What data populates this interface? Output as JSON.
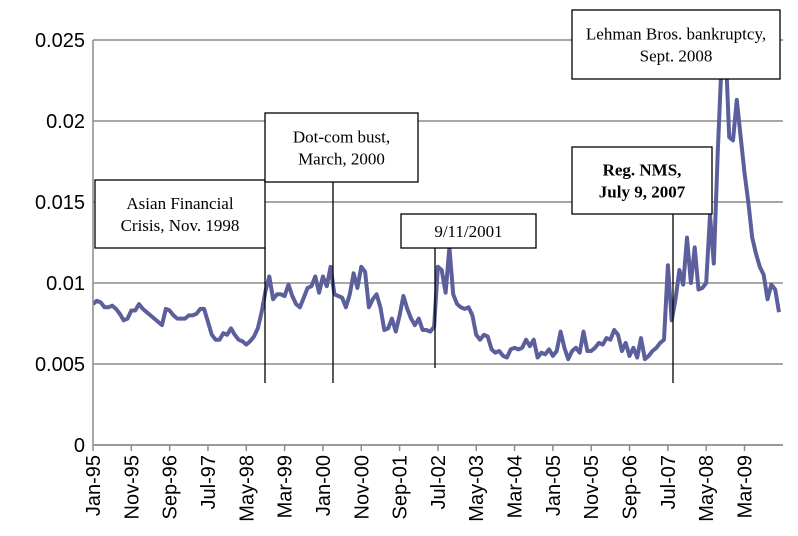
{
  "chart_data": {
    "type": "line",
    "categories": [
      "Jan-95",
      null,
      null,
      null,
      null,
      null,
      null,
      null,
      null,
      null,
      "Nov-95",
      null,
      null,
      null,
      null,
      null,
      null,
      null,
      null,
      null,
      "Sep-96",
      null,
      null,
      null,
      null,
      null,
      null,
      null,
      null,
      null,
      "Jul-97",
      null,
      null,
      null,
      null,
      null,
      null,
      null,
      null,
      null,
      "May-98",
      null,
      null,
      null,
      null,
      null,
      null,
      null,
      null,
      null,
      "Mar-99",
      null,
      null,
      null,
      null,
      null,
      null,
      null,
      null,
      null,
      "Jan-00",
      null,
      null,
      null,
      null,
      null,
      null,
      null,
      null,
      null,
      "Nov-00",
      null,
      null,
      null,
      null,
      null,
      null,
      null,
      null,
      null,
      "Sep-01",
      null,
      null,
      null,
      null,
      null,
      null,
      null,
      null,
      null,
      "Jul-02",
      null,
      null,
      null,
      null,
      null,
      null,
      null,
      null,
      null,
      "May-03",
      null,
      null,
      null,
      null,
      null,
      null,
      null,
      null,
      null,
      "Mar-04",
      null,
      null,
      null,
      null,
      null,
      null,
      null,
      null,
      null,
      "Jan-05",
      null,
      null,
      null,
      null,
      null,
      null,
      null,
      null,
      null,
      "Nov-05",
      null,
      null,
      null,
      null,
      null,
      null,
      null,
      null,
      null,
      "Sep-06",
      null,
      null,
      null,
      null,
      null,
      null,
      null,
      null,
      null,
      "Jul-07",
      null,
      null,
      null,
      null,
      null,
      null,
      null,
      null,
      null,
      "May-08",
      null,
      null,
      null,
      null,
      null,
      null,
      null,
      null,
      null,
      "Mar-09",
      null,
      null,
      null,
      null,
      null,
      null,
      null,
      null,
      null
    ],
    "series": [
      {
        "color": "#5b5f9c",
        "values": [
          0.0087,
          0.0089,
          0.0088,
          0.0085,
          0.0085,
          0.0086,
          0.0084,
          0.0081,
          0.0077,
          0.0078,
          0.0083,
          0.0083,
          0.0087,
          0.0084,
          0.0082,
          0.008,
          0.0078,
          0.0076,
          0.0074,
          0.0084,
          0.0083,
          0.008,
          0.0078,
          0.0078,
          0.0078,
          0.008,
          0.008,
          0.0081,
          0.0084,
          0.0084,
          0.0076,
          0.0068,
          0.0065,
          0.0065,
          0.0069,
          0.0068,
          0.0072,
          0.0068,
          0.0065,
          0.0064,
          0.0062,
          0.0064,
          0.0067,
          0.0072,
          0.0082,
          0.0095,
          0.0104,
          0.009,
          0.0093,
          0.0093,
          0.0092,
          0.0099,
          0.0092,
          0.0087,
          0.0085,
          0.0091,
          0.0097,
          0.0098,
          0.0104,
          0.0094,
          0.0104,
          0.0098,
          0.011,
          0.0093,
          0.0092,
          0.0091,
          0.0085,
          0.0093,
          0.0106,
          0.0097,
          0.011,
          0.0107,
          0.0085,
          0.009,
          0.0093,
          0.0085,
          0.0071,
          0.0072,
          0.0078,
          0.007,
          0.008,
          0.0092,
          0.0084,
          0.0078,
          0.0074,
          0.0078,
          0.0071,
          0.0071,
          0.007,
          0.0073,
          0.011,
          0.0108,
          0.0094,
          0.0122,
          0.0093,
          0.0087,
          0.0085,
          0.0084,
          0.0085,
          0.008,
          0.0068,
          0.0065,
          0.0068,
          0.0067,
          0.0059,
          0.0057,
          0.0058,
          0.0055,
          0.0054,
          0.0059,
          0.006,
          0.0059,
          0.006,
          0.0065,
          0.0061,
          0.0065,
          0.0054,
          0.0057,
          0.0056,
          0.0059,
          0.0055,
          0.0058,
          0.007,
          0.006,
          0.0053,
          0.0058,
          0.006,
          0.0057,
          0.007,
          0.0058,
          0.0058,
          0.006,
          0.0063,
          0.0062,
          0.0066,
          0.0065,
          0.0071,
          0.0068,
          0.0058,
          0.0063,
          0.0055,
          0.006,
          0.0054,
          0.0066,
          0.0053,
          0.0055,
          0.0058,
          0.006,
          0.0063,
          0.0065,
          0.0111,
          0.0077,
          0.009,
          0.0108,
          0.0099,
          0.0128,
          0.01,
          0.0122,
          0.0096,
          0.0097,
          0.01,
          0.0142,
          0.0112,
          0.018,
          0.0235,
          0.025,
          0.019,
          0.0188,
          0.0213,
          0.019,
          0.0168,
          0.015,
          0.0128,
          0.0118,
          0.011,
          0.0105,
          0.009,
          0.0099,
          0.0096,
          0.0082
        ]
      }
    ],
    "ylim": [
      0,
      0.025
    ],
    "yticks": [
      0,
      0.005,
      0.01,
      0.015,
      0.02,
      0.025
    ],
    "grid": true,
    "annotations": [
      {
        "lines": [
          "Asian Financial",
          "Crisis, Nov. 1998"
        ]
      },
      {
        "lines": [
          "Dot-com bust,",
          "March, 2000"
        ]
      },
      {
        "lines": [
          "9/11/2001"
        ]
      },
      {
        "lines": [
          "Reg. NMS,",
          "July 9, 2007"
        ],
        "bold": true
      },
      {
        "lines": [
          "Lehman Bros. bankruptcy,",
          "Sept. 2008"
        ]
      }
    ]
  }
}
